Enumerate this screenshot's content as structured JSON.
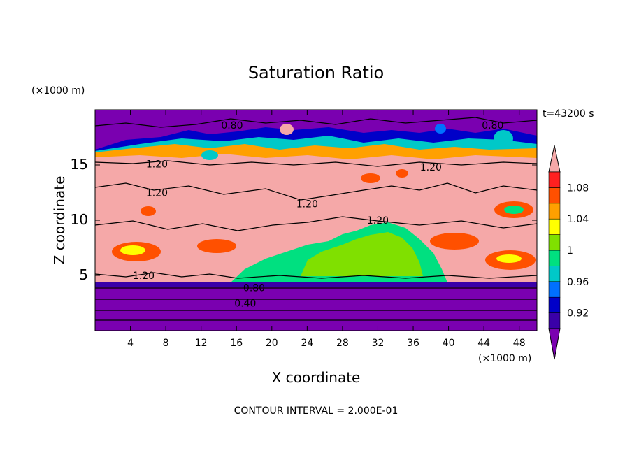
{
  "chart_data": {
    "type": "heatmap",
    "title": "Saturation Ratio",
    "xlabel": "X coordinate",
    "ylabel": "Z coordinate",
    "x_unit": "(×1000 m)",
    "y_unit": "(×1000 m)",
    "time_label": "t=43200 s",
    "footer": "CONTOUR INTERVAL = 2.000E-01",
    "xlim": [
      0,
      50
    ],
    "ylim": [
      0,
      20
    ],
    "x_ticks": [
      4,
      8,
      12,
      16,
      20,
      24,
      28,
      32,
      36,
      40,
      44,
      48
    ],
    "y_ticks": [
      5,
      10,
      15
    ],
    "colorbar": {
      "levels": [
        0.9,
        0.92,
        0.94,
        0.96,
        0.98,
        1.0,
        1.02,
        1.04,
        1.06,
        1.08,
        1.1
      ],
      "tick_labels": [
        "0.92",
        "0.96",
        "1",
        "1.04",
        "1.08"
      ],
      "tick_values": [
        0.92,
        0.96,
        1.0,
        1.04,
        1.08
      ],
      "colors": [
        "#7a00b0",
        "#3a00a8",
        "#0000c8",
        "#0070ff",
        "#00c8c8",
        "#00e080",
        "#80e000",
        "#ffff00",
        "#ffa000",
        "#ff5000",
        "#ff2020",
        "#f5a8a8"
      ],
      "extend": "both"
    },
    "contour_labels": [
      {
        "text": "0.80",
        "x": 15.5,
        "z": 18.6
      },
      {
        "text": "0.80",
        "x": 45.0,
        "z": 18.6
      },
      {
        "text": "1.20",
        "x": 7.0,
        "z": 15.1
      },
      {
        "text": "1.20",
        "x": 38.0,
        "z": 14.8
      },
      {
        "text": "1.20",
        "x": 7.0,
        "z": 12.5
      },
      {
        "text": "1.20",
        "x": 24.0,
        "z": 11.5
      },
      {
        "text": "1.20",
        "x": 32.0,
        "z": 10.0
      },
      {
        "text": "1.20",
        "x": 5.5,
        "z": 5.0
      },
      {
        "text": "0.80",
        "x": 18.0,
        "z": 3.9
      },
      {
        "text": "0.40",
        "x": 17.0,
        "z": 2.5
      }
    ]
  }
}
